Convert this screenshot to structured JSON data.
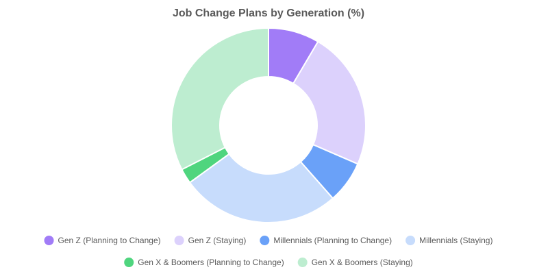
{
  "chart_data": {
    "type": "pie",
    "variant": "donut",
    "title": "Job Change Plans by Generation (%)",
    "legend_position": "bottom",
    "slices": [
      {
        "label": "Gen Z (Planning to Change)",
        "value": 8.5,
        "color": "#a17cf7"
      },
      {
        "label": "Gen Z (Staying)",
        "value": 23.0,
        "color": "#dcd1fc"
      },
      {
        "label": "Millennials (Planning to Change)",
        "value": 7.0,
        "color": "#6aa1f8"
      },
      {
        "label": "Millennials (Staying)",
        "value": 26.5,
        "color": "#c7dcfc"
      },
      {
        "label": "Gen X & Boomers (Planning to Change)",
        "value": 2.5,
        "color": "#4fd57e"
      },
      {
        "label": "Gen X & Boomers (Staying)",
        "value": 32.5,
        "color": "#bdedd0"
      }
    ]
  }
}
